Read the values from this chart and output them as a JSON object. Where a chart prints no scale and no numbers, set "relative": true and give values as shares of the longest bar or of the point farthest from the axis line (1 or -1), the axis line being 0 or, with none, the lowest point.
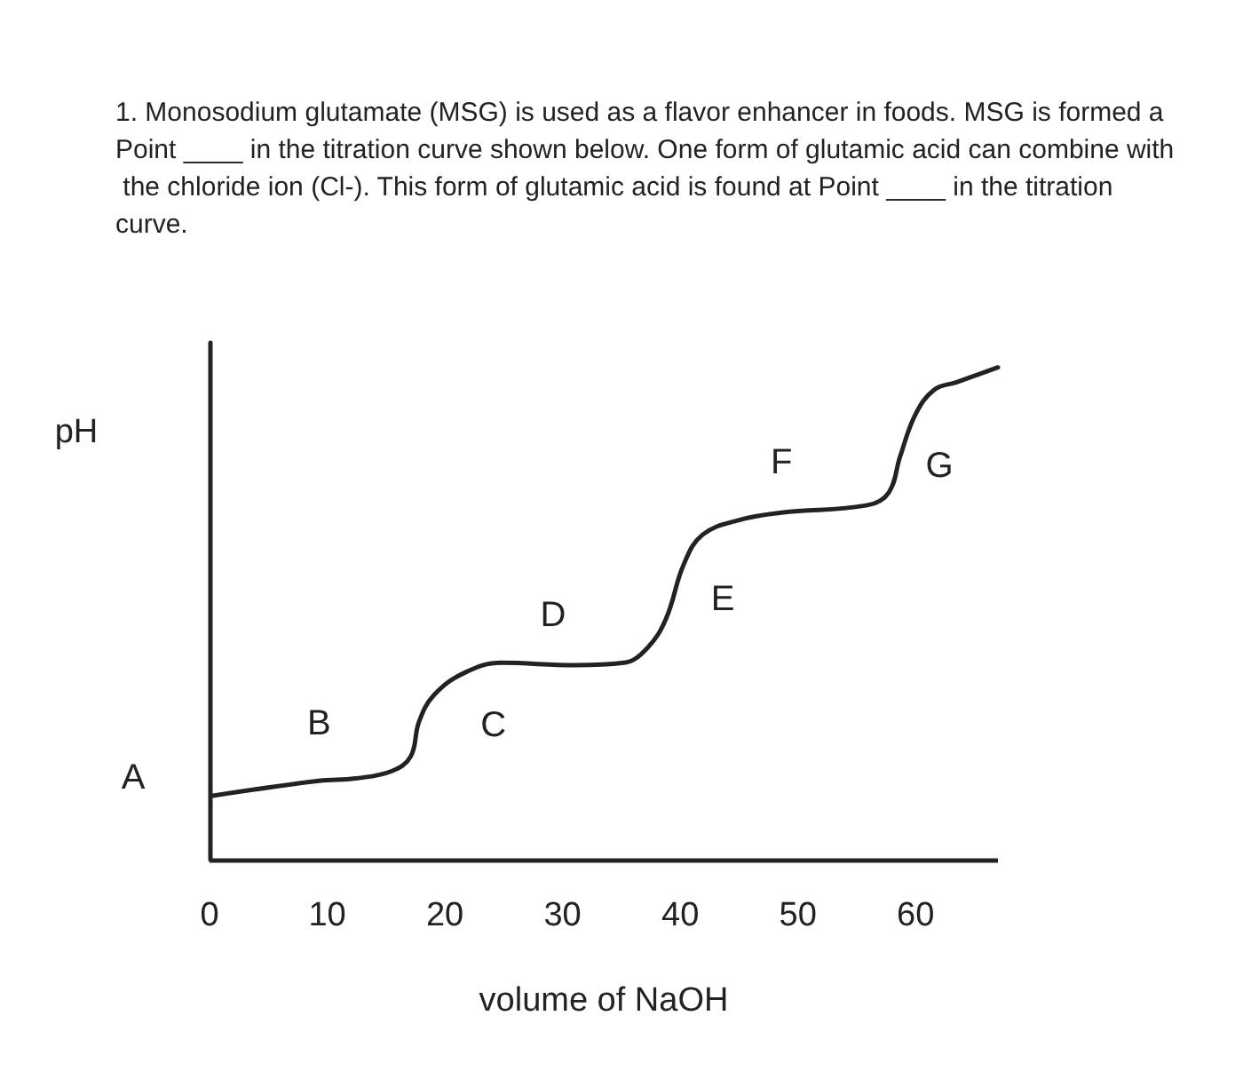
{
  "chart_data": {
    "type": "line",
    "title": "1. Monosodium glutamate (MSG) is used as a flavor enhancer in foods. MSG is formed a Point ____ in the titration curve shown below. One form of glutamic acid can combine with the chloride ion (Cl-). This form of glutamic acid is found at Point ____ in the titration curve.",
    "xlabel": "volume of NaOH",
    "ylabel": "pH",
    "relative": true,
    "x": [
      0.3,
      9.3,
      12.4,
      15.5,
      17.1,
      17.8,
      19.1,
      21.7,
      24.8,
      31.0,
      35.2,
      37.2,
      38.8,
      40.3,
      41.9,
      45.0,
      48.6,
      55.9,
      57.7,
      58.7,
      60.0,
      61.6,
      63.5,
      67.0
    ],
    "series": [
      {
        "color": "#222222",
        "values": [
          0.13,
          0.16,
          0.165,
          0.18,
          0.21,
          0.28,
          0.335,
          0.38,
          0.4,
          0.395,
          0.4,
          0.43,
          0.49,
          0.6,
          0.66,
          0.69,
          0.705,
          0.72,
          0.745,
          0.82,
          0.905,
          0.955,
          0.97,
          1.0
        ]
      }
    ],
    "xlim": [
      0,
      67
    ],
    "xticks": [
      0,
      10,
      20,
      30,
      40,
      50,
      60
    ],
    "annotations": [
      {
        "text": "A",
        "x": 0.3,
        "y": 0.13
      },
      {
        "text": "B",
        "x": 9.3,
        "y": 0.16
      },
      {
        "text": "C",
        "x": 21.7,
        "y": 0.38
      },
      {
        "text": "D",
        "x": 31.0,
        "y": 0.395
      },
      {
        "text": "E",
        "x": 40.3,
        "y": 0.6
      },
      {
        "text": "F",
        "x": 48.6,
        "y": 0.705
      },
      {
        "text": "G",
        "x": 58.7,
        "y": 0.82
      }
    ],
    "grid": false,
    "marker": "none",
    "line_style": "solid"
  }
}
